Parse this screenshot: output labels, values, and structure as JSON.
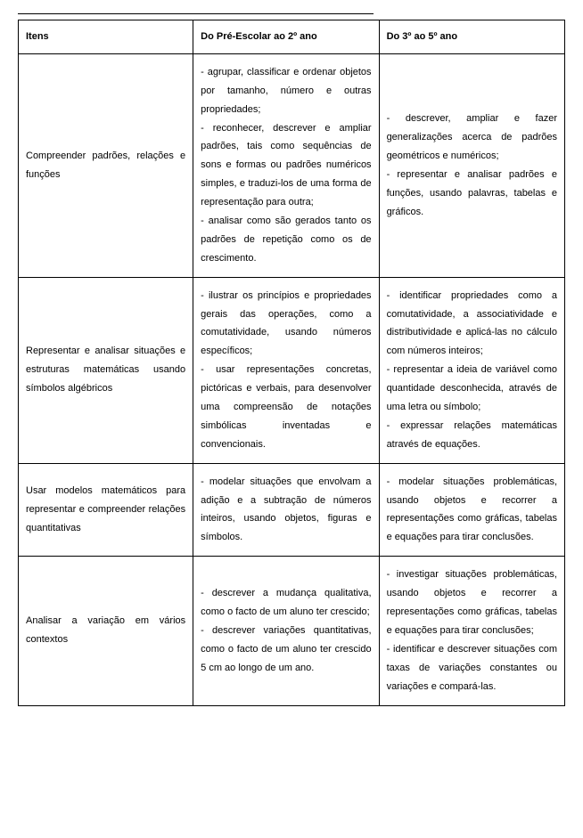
{
  "table": {
    "header": {
      "col1": "Itens",
      "col2": "Do Pré-Escolar ao 2º ano",
      "col3": "Do 3º ao 5º ano"
    },
    "rows": [
      {
        "item": "Compreender padrões, relações e funções",
        "pre": "- agrupar, classificar e ordenar objetos por tamanho, número e outras propriedades;\n- reconhecer, descrever e ampliar padrões, tais como sequências de sons e formas ou padrões numéricos simples, e traduzi-los de uma forma de representação para outra;\n- analisar como são gerados tanto os padrões de repetição como os de crescimento.",
        "g35": "- descrever, ampliar e fazer generalizações acerca de padrões geométricos e numéricos;\n- representar e analisar padrões e funções, usando palavras, tabelas e gráficos."
      },
      {
        "item": "Representar e analisar situações e estruturas matemáticas usando símbolos algébricos",
        "pre": "- ilustrar os princípios e propriedades gerais das operações, como a comutatividade, usando números específicos;\n- usar representações concretas, pictóricas e verbais, para desenvolver uma compreensão de notações simbólicas inventadas e convencionais.",
        "g35": "- identificar propriedades como a comutatividade, a associatividade e distributividade e aplicá-las no cálculo com números inteiros;\n- representar a ideia de variável como quantidade desconhecida, através de uma letra ou símbolo;\n- expressar relações matemáticas através de equações."
      },
      {
        "item": "Usar modelos matemáticos para representar e compreender relações quantitativas",
        "pre": "- modelar situações que envolvam a adição e a subtração de números inteiros, usando objetos, figuras e símbolos.",
        "g35": "- modelar situações problemáticas, usando objetos e recorrer a representações como gráficas, tabelas e equações para tirar conclusões."
      },
      {
        "item": "Analisar a variação em vários contextos",
        "pre": "- descrever a mudança qualitativa, como o facto de um aluno ter crescido;\n- descrever variações quantitativas, como o facto de um aluno ter crescido 5 cm ao longo de um ano.",
        "g35": "- investigar situações problemáticas, usando objetos e recorrer a representações como gráficas, tabelas e equações para tirar conclusões;\n- identificar e descrever situações com taxas de variações constantes ou variações e compará-las."
      }
    ]
  }
}
